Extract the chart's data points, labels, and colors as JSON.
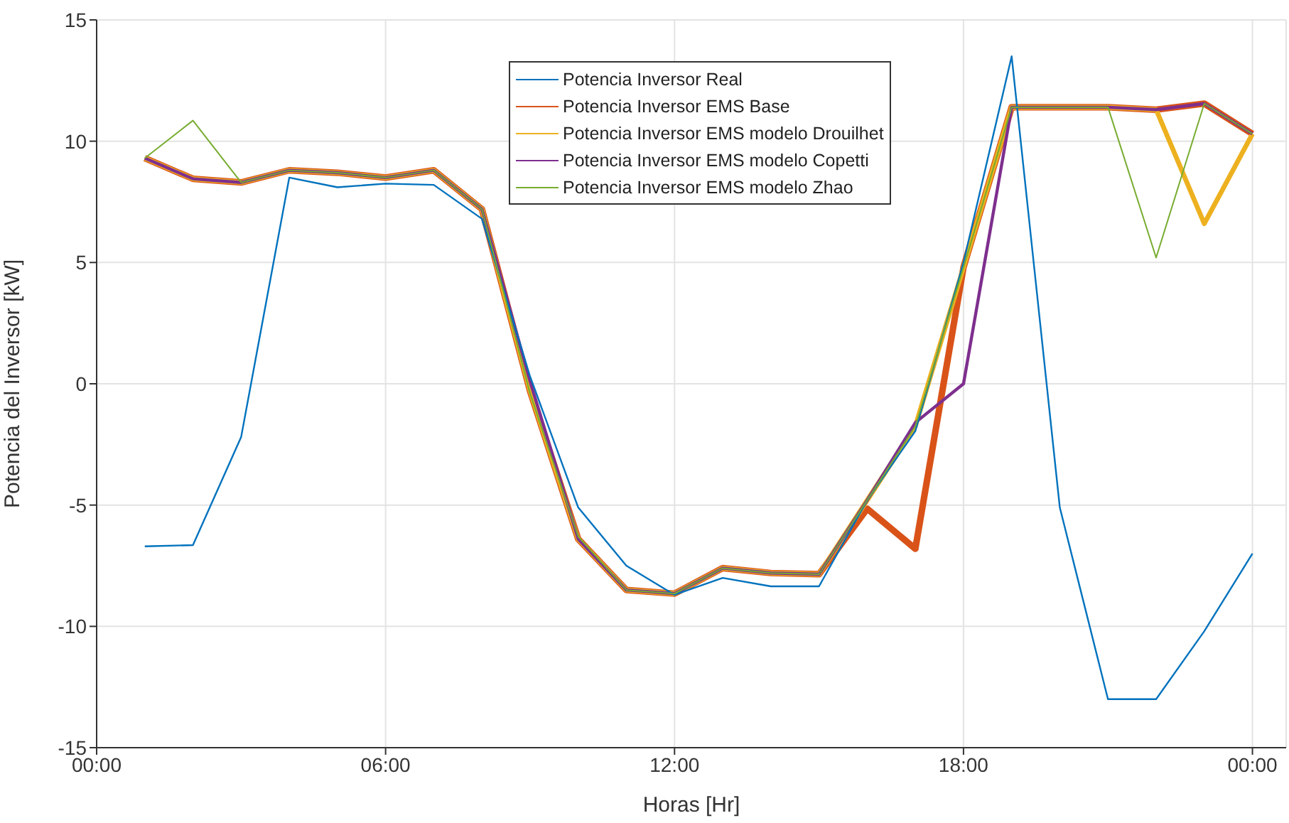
{
  "chart_data": {
    "type": "line",
    "xlabel": "Horas [Hr]",
    "ylabel": "Potencia del Inversor [kW]",
    "x": [
      1,
      2,
      3,
      4,
      5,
      6,
      7,
      8,
      9,
      10,
      11,
      12,
      13,
      14,
      15,
      16,
      17,
      18,
      19,
      20,
      21,
      22,
      23,
      24
    ],
    "xlim": [
      0,
      24.7
    ],
    "xticks": [
      {
        "value": 0,
        "label": "00:00"
      },
      {
        "value": 6,
        "label": "06:00"
      },
      {
        "value": 12,
        "label": "12:00"
      },
      {
        "value": 18,
        "label": "18:00"
      },
      {
        "value": 24,
        "label": "00:00"
      }
    ],
    "ylim": [
      -15,
      15
    ],
    "yticks": [
      -15,
      -10,
      -5,
      0,
      5,
      10,
      15
    ],
    "grid": true,
    "legend": "top",
    "marker": "none",
    "line_style": "solid",
    "series": [
      {
        "name": "Potencia Inversor Real",
        "color": "#0072bd",
        "values": [
          -6.7,
          -6.65,
          -2.2,
          8.5,
          8.1,
          8.25,
          8.2,
          6.8,
          0.3,
          -5.1,
          -7.5,
          -8.7,
          -8.0,
          -8.35,
          -8.35,
          -4.8,
          -1.95,
          5.0,
          13.5,
          -5.1,
          -13.0,
          -13.0,
          -10.2,
          -7.0
        ]
      },
      {
        "name": "Potencia Inversor EMS Base",
        "color": "#d95319",
        "values": [
          9.3,
          8.45,
          8.3,
          8.8,
          8.7,
          8.5,
          8.8,
          7.2,
          -0.3,
          -6.4,
          -8.5,
          -8.65,
          -7.6,
          -7.8,
          -7.85,
          -5.15,
          -6.8,
          4.8,
          11.4,
          11.4,
          11.4,
          11.3,
          11.55,
          10.3
        ]
      },
      {
        "name": "Potencia Inversor EMS modelo Drouilhet",
        "color": "#edb120",
        "values": [
          9.3,
          8.45,
          8.3,
          8.8,
          8.7,
          8.5,
          8.8,
          7.2,
          -0.3,
          -6.4,
          -8.5,
          -8.65,
          -7.6,
          -7.8,
          -7.85,
          -4.8,
          -1.75,
          4.8,
          11.4,
          11.4,
          11.4,
          11.3,
          6.6,
          10.3
        ]
      },
      {
        "name": "Potencia Inversor EMS modelo Copetti",
        "color": "#7e2f8e",
        "values": [
          9.3,
          8.45,
          8.3,
          8.8,
          8.7,
          8.5,
          8.8,
          7.2,
          0.1,
          -6.4,
          -8.5,
          -8.65,
          -7.6,
          -7.8,
          -7.85,
          -4.8,
          -1.6,
          0.0,
          11.4,
          11.4,
          11.4,
          11.3,
          11.55,
          10.3
        ]
      },
      {
        "name": "Potencia Inversor EMS modelo Zhao",
        "color": "#77ac30",
        "values": [
          9.3,
          10.85,
          8.3,
          8.8,
          8.7,
          8.5,
          8.8,
          7.2,
          -0.4,
          -6.3,
          -8.5,
          -8.65,
          -7.6,
          -7.8,
          -7.85,
          -4.8,
          -1.75,
          4.8,
          11.4,
          11.4,
          11.4,
          5.2,
          11.55,
          10.3
        ]
      }
    ]
  }
}
